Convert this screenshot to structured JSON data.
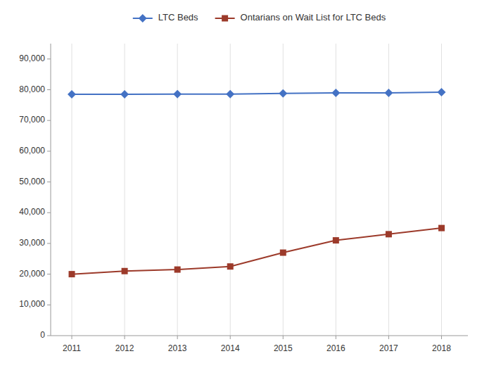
{
  "chart_data": {
    "type": "line",
    "x": [
      2011,
      2012,
      2013,
      2014,
      2015,
      2016,
      2017,
      2018
    ],
    "series": [
      {
        "name": "LTC Beds",
        "color": "#4472C4",
        "marker": "diamond",
        "values": [
          78500,
          78500,
          78600,
          78600,
          78800,
          79000,
          79000,
          79200
        ]
      },
      {
        "name": "Ontarians on Wait List for LTC Beds",
        "color": "#9C3A2A",
        "marker": "square",
        "values": [
          20000,
          21000,
          21500,
          22500,
          27000,
          31000,
          33000,
          35000
        ]
      }
    ],
    "xlim": [
      2010.6,
      2018.5
    ],
    "xticks": [
      2011,
      2012,
      2013,
      2014,
      2015,
      2016,
      2017,
      2018
    ],
    "ylim": [
      0,
      95000
    ],
    "yticks": [
      0,
      {
        "value": 10000,
        "label": "10,000"
      },
      {
        "value": 20000,
        "label": "20,000"
      },
      {
        "value": 30000,
        "label": "30,000"
      },
      {
        "value": 40000,
        "label": "40,000"
      },
      {
        "value": 50000,
        "label": "50,000"
      },
      {
        "value": 60000,
        "label": "60,000"
      },
      {
        "value": 70000,
        "label": "70,000"
      },
      {
        "value": 80000,
        "label": "80,000"
      },
      {
        "value": 90000,
        "label": "90,000"
      }
    ],
    "grid": "x",
    "legend": "top"
  }
}
